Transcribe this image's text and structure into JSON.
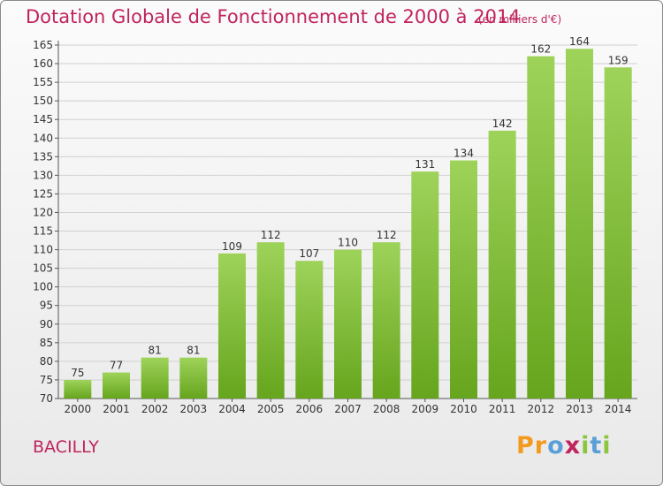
{
  "header": {
    "title": "Dotation Globale de Fonctionnement de 2000 à 2014",
    "subtitle": "(en milliers d'€)"
  },
  "footer": {
    "commune": "BACILLY",
    "logo_text": "Proxiti",
    "logo_letters": [
      "P",
      "r",
      "o",
      "x",
      "i",
      "t",
      "i"
    ],
    "logo_colors": [
      "#f39a1e",
      "#f39a1e",
      "#5aa0d8",
      "#c0245d",
      "#8cc63f",
      "#5aa0d8",
      "#8cc63f"
    ]
  },
  "chart_data": {
    "type": "bar",
    "title": "Dotation Globale de Fonctionnement de 2000 à 2014",
    "subtitle": "(en milliers d'€)",
    "categories": [
      "2000",
      "2001",
      "2002",
      "2003",
      "2004",
      "2005",
      "2006",
      "2007",
      "2008",
      "2009",
      "2010",
      "2011",
      "2012",
      "2013",
      "2014"
    ],
    "values": [
      75,
      77,
      81,
      81,
      109,
      112,
      107,
      110,
      112,
      131,
      134,
      142,
      162,
      164,
      159
    ],
    "ylim": [
      70,
      165
    ],
    "yticks": [
      70,
      75,
      80,
      85,
      90,
      95,
      100,
      105,
      110,
      115,
      120,
      125,
      130,
      135,
      140,
      145,
      150,
      155,
      160,
      165
    ],
    "grid": true,
    "bar_color_top": "#9ed35a",
    "bar_color_bottom": "#66a51d"
  }
}
